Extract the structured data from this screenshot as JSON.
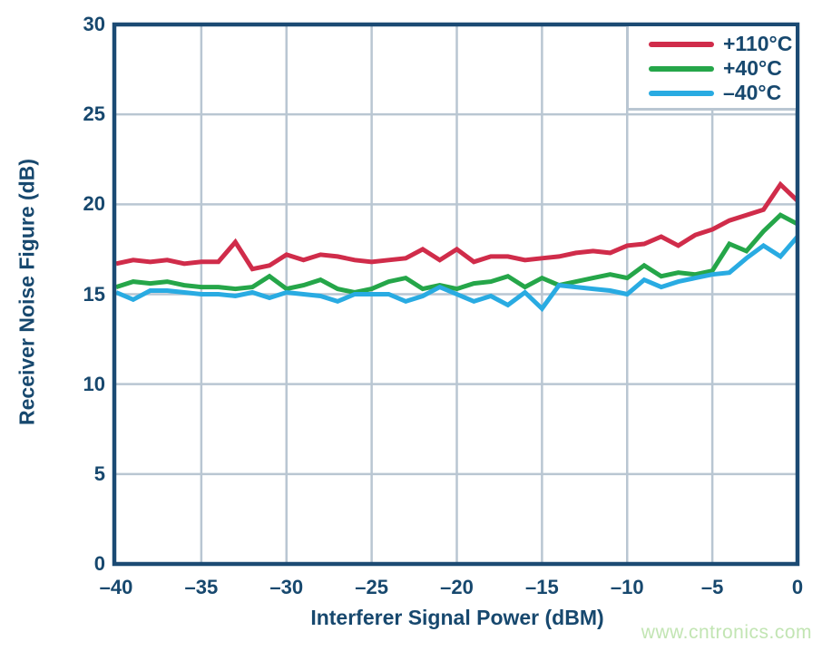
{
  "figure": {
    "watermark": "www.cntronics.com"
  },
  "colors": {
    "axis_navy": "#17486E",
    "frame_navy": "#1B4A73",
    "gridline": "#B9C6D2",
    "series_red": "#D02C4A",
    "series_green": "#25A649",
    "series_cyan": "#29ABE2",
    "watermark_green": "#C2E5B3",
    "background": "#FFFFFF"
  },
  "chart_data": {
    "type": "line",
    "title": "",
    "xlabel": "Interferer Signal Power (dBM)",
    "ylabel": "Receiver Noise Figure (dB)",
    "xlim": [
      -40,
      0
    ],
    "ylim": [
      0,
      30
    ],
    "grid": true,
    "legend_position": "top-right",
    "x_ticks": [
      -40,
      -35,
      -30,
      -25,
      -20,
      -15,
      -10,
      -5,
      0
    ],
    "x_tick_labels": [
      "–40",
      "–35",
      "–30",
      "–25",
      "–20",
      "–15",
      "–10",
      "–5",
      "0"
    ],
    "y_ticks": [
      0,
      5,
      10,
      15,
      20,
      25,
      30
    ],
    "y_tick_labels": [
      "0",
      "5",
      "10",
      "15",
      "20",
      "25",
      "30"
    ],
    "x": [
      -40,
      -39,
      -38,
      -37,
      -36,
      -35,
      -34,
      -33,
      -32,
      -31,
      -30,
      -29,
      -28,
      -27,
      -26,
      -25,
      -24,
      -23,
      -22,
      -21,
      -20,
      -19,
      -18,
      -17,
      -16,
      -15,
      -14,
      -13,
      -12,
      -11,
      -10,
      -9,
      -8,
      -7,
      -6,
      -5,
      -4,
      -3,
      -2,
      -1,
      0
    ],
    "series": [
      {
        "name": "+110°C",
        "color": "#D02C4A",
        "values": [
          16.7,
          16.9,
          16.8,
          16.9,
          16.7,
          16.8,
          16.8,
          17.9,
          16.4,
          16.6,
          17.2,
          16.9,
          17.2,
          17.1,
          16.9,
          16.8,
          16.9,
          17.0,
          17.5,
          16.9,
          17.5,
          16.8,
          17.1,
          17.1,
          16.9,
          17.0,
          17.1,
          17.3,
          17.4,
          17.3,
          17.7,
          17.8,
          18.2,
          17.7,
          18.3,
          18.6,
          19.1,
          19.4,
          19.7,
          21.1,
          20.2
        ]
      },
      {
        "name": "+40°C",
        "color": "#25A649",
        "values": [
          15.4,
          15.7,
          15.6,
          15.7,
          15.5,
          15.4,
          15.4,
          15.3,
          15.4,
          16.0,
          15.3,
          15.5,
          15.8,
          15.3,
          15.1,
          15.3,
          15.7,
          15.9,
          15.3,
          15.5,
          15.3,
          15.6,
          15.7,
          16.0,
          15.4,
          15.9,
          15.5,
          15.7,
          15.9,
          16.1,
          15.9,
          16.6,
          16.0,
          16.2,
          16.1,
          16.3,
          17.8,
          17.4,
          18.5,
          19.4,
          18.9
        ]
      },
      {
        "name": "–40°C",
        "color": "#29ABE2",
        "values": [
          15.1,
          14.7,
          15.2,
          15.2,
          15.1,
          15.0,
          15.0,
          14.9,
          15.1,
          14.8,
          15.1,
          15.0,
          14.9,
          14.6,
          15.0,
          15.0,
          15.0,
          14.6,
          14.9,
          15.4,
          15.0,
          14.6,
          14.9,
          14.4,
          15.1,
          14.2,
          15.5,
          15.4,
          15.3,
          15.2,
          15.0,
          15.8,
          15.4,
          15.7,
          15.9,
          16.1,
          16.2,
          17.0,
          17.7,
          17.1,
          18.2
        ]
      }
    ]
  }
}
